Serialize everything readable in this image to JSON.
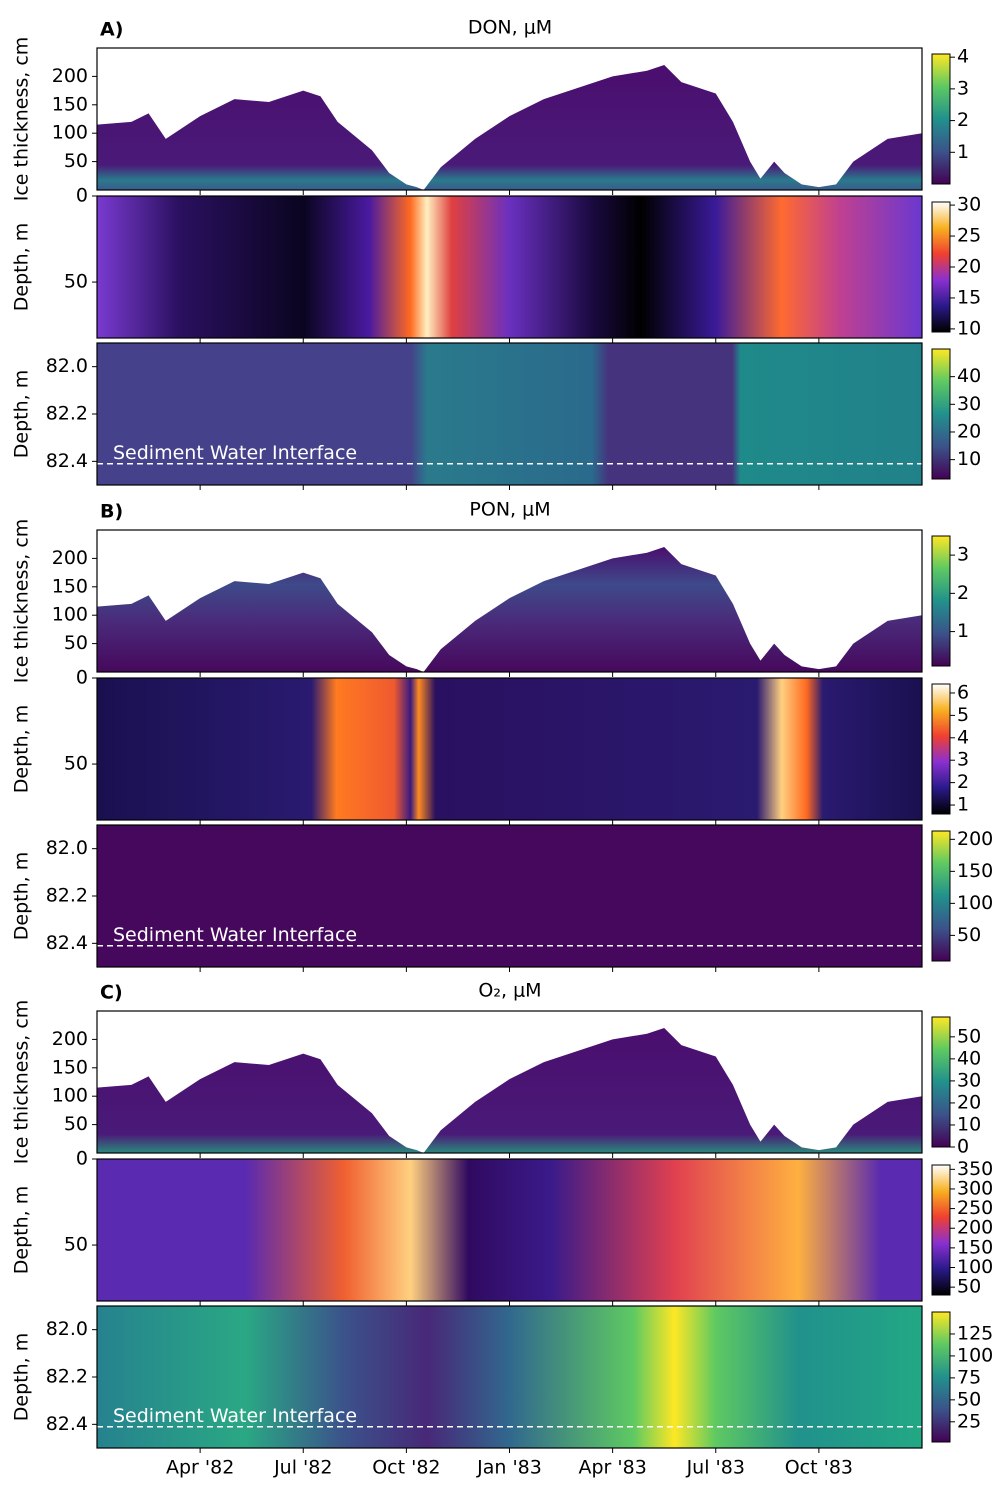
{
  "xaxis": {
    "xlim": [
      0,
      24
    ],
    "xticks": [
      {
        "value": 3,
        "label": "Apr '82"
      },
      {
        "value": 6,
        "label": "Jul '82"
      },
      {
        "value": 9,
        "label": "Oct '82"
      },
      {
        "value": 12,
        "label": "Jan '83"
      },
      {
        "value": 15,
        "label": "Apr '83"
      },
      {
        "value": 18,
        "label": "Jul '83"
      },
      {
        "value": 21,
        "label": "Oct '83"
      }
    ]
  },
  "ice_thickness": {
    "x": [
      0,
      1,
      1.5,
      2,
      3,
      4,
      5,
      6,
      6.5,
      7,
      8,
      8.5,
      9,
      9.3,
      9.5,
      10,
      11,
      12,
      13,
      14,
      15,
      16,
      16.5,
      17,
      18,
      18.5,
      19,
      19.3,
      19.7,
      20,
      20.5,
      21,
      21.5,
      22,
      23,
      24
    ],
    "values": [
      115,
      120,
      135,
      90,
      130,
      160,
      155,
      175,
      165,
      120,
      70,
      30,
      10,
      5,
      0,
      40,
      90,
      130,
      160,
      180,
      200,
      210,
      220,
      190,
      170,
      120,
      50,
      20,
      50,
      30,
      10,
      5,
      10,
      50,
      90,
      100
    ]
  },
  "swi_depth": 82.41,
  "panels": [
    {
      "label": "A)",
      "title": "DON, μM",
      "ice": {
        "ylabel": "Ice thickness, cm",
        "ylim": [
          0,
          250
        ],
        "yticks": [
          50,
          100,
          150,
          200
        ],
        "clim": [
          0,
          4.1
        ],
        "cticks": [
          1,
          2,
          3,
          4
        ]
      },
      "water": {
        "ylabel": "Depth, m",
        "ylim": [
          0,
          82.5
        ],
        "yticks": [
          0,
          50
        ],
        "clim": [
          9.5,
          30.5
        ],
        "cticks": [
          10,
          15,
          20,
          25,
          30
        ]
      },
      "sediment": {
        "ylabel": "Depth, m",
        "ylim": [
          81.9,
          82.5
        ],
        "yticks": [
          {
            "value": 82.0,
            "label": "82.0"
          },
          {
            "value": 82.2,
            "label": "82.2"
          },
          {
            "value": 82.4,
            "label": "82.4"
          }
        ],
        "clim": [
          3,
          50
        ],
        "cticks": [
          10,
          20,
          30,
          40
        ],
        "annotation": "Sediment Water Interface"
      }
    },
    {
      "label": "B)",
      "title": "PON, μM",
      "ice": {
        "ylabel": "Ice thickness, cm",
        "ylim": [
          0,
          250
        ],
        "yticks": [
          50,
          100,
          150,
          200
        ],
        "clim": [
          0.1,
          3.5
        ],
        "cticks": [
          1,
          2,
          3
        ]
      },
      "water": {
        "ylabel": "Depth, m",
        "ylim": [
          0,
          82.5
        ],
        "yticks": [
          0,
          50
        ],
        "clim": [
          0.6,
          6.4
        ],
        "cticks": [
          1,
          2,
          3,
          4,
          5,
          6
        ]
      },
      "sediment": {
        "ylabel": "Depth, m",
        "ylim": [
          81.9,
          82.5
        ],
        "yticks": [
          {
            "value": 82.0,
            "label": "82.0"
          },
          {
            "value": 82.2,
            "label": "82.2"
          },
          {
            "value": 82.4,
            "label": "82.4"
          }
        ],
        "clim": [
          10,
          213
        ],
        "cticks": [
          50,
          100,
          150,
          200
        ],
        "annotation": "Sediment Water Interface"
      }
    },
    {
      "label": "C)",
      "title": "O₂, μM",
      "ice": {
        "ylabel": "Ice thickness, cm",
        "ylim": [
          0,
          250
        ],
        "yticks": [
          50,
          100,
          150,
          200
        ],
        "clim": [
          0,
          59
        ],
        "cticks": [
          0,
          10,
          20,
          30,
          40,
          50
        ]
      },
      "water": {
        "ylabel": "Depth, m",
        "ylim": [
          0,
          82.5
        ],
        "yticks": [
          0,
          50
        ],
        "clim": [
          30,
          361
        ],
        "cticks": [
          50,
          100,
          150,
          200,
          250,
          300,
          350
        ]
      },
      "sediment": {
        "ylabel": "Depth, m",
        "ylim": [
          81.9,
          82.5
        ],
        "yticks": [
          {
            "value": 82.0,
            "label": "82.0"
          },
          {
            "value": 82.2,
            "label": "82.2"
          },
          {
            "value": 82.4,
            "label": "82.4"
          }
        ],
        "clim": [
          2,
          150
        ],
        "cticks": [
          25,
          50,
          75,
          100,
          125
        ],
        "annotation": "Sediment Water Interface"
      }
    }
  ]
}
